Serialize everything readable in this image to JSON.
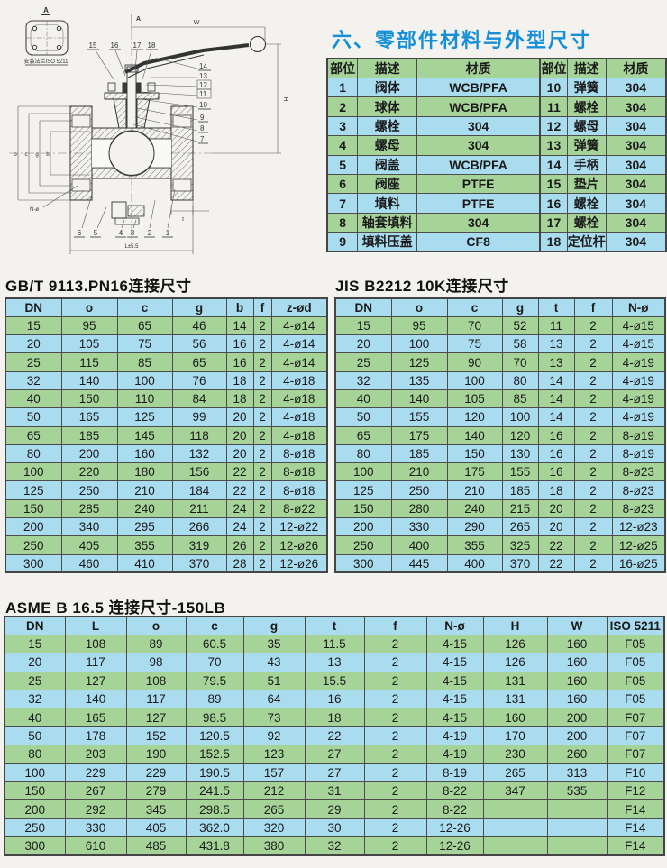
{
  "page": {
    "title": "六、零部件材料与外型尺寸"
  },
  "colors": {
    "title_blue": "#1590d7",
    "row_green": "#a6d498",
    "row_blue": "#aadcf0"
  },
  "drawing": {
    "view_label": "A",
    "axis_label": "A",
    "iso_note": "安装法兰ISO 5211",
    "callouts_top": [
      "15",
      "16",
      "17",
      "18"
    ],
    "callouts_right": [
      "14",
      "13",
      "12",
      "11",
      "10",
      "9",
      "8",
      "7"
    ],
    "callouts_bottom": [
      "6",
      "5",
      "4",
      "3",
      "2",
      "1"
    ],
    "dims": {
      "w": "W",
      "h": "H",
      "o": "o",
      "c": "c",
      "g": "g",
      "b": "b",
      "n_phi": "N-ø",
      "l": "L±5.5",
      "t": "t"
    }
  },
  "parts_table": {
    "headers": [
      "部位",
      "描述",
      "材质",
      "部位",
      "描述",
      "材质"
    ],
    "rows": [
      [
        "1",
        "阀体",
        "WCB/PFA",
        "10",
        "弹簧",
        "304"
      ],
      [
        "2",
        "球体",
        "WCB/PFA",
        "11",
        "螺栓",
        "304"
      ],
      [
        "3",
        "螺栓",
        "304",
        "12",
        "螺母",
        "304"
      ],
      [
        "4",
        "螺母",
        "304",
        "13",
        "弹簧",
        "304"
      ],
      [
        "5",
        "阀盖",
        "WCB/PFA",
        "14",
        "手柄",
        "304"
      ],
      [
        "6",
        "阀座",
        "PTFE",
        "15",
        "垫片",
        "304"
      ],
      [
        "7",
        "填料",
        "PTFE",
        "16",
        "螺栓",
        "304"
      ],
      [
        "8",
        "轴套填料",
        "304",
        "17",
        "螺栓",
        "304"
      ],
      [
        "9",
        "填料压盖",
        "CF8",
        "18",
        "定位杆",
        "304"
      ]
    ],
    "row_shades": [
      "b",
      "g",
      "b",
      "g",
      "b",
      "g",
      "b",
      "g",
      "b"
    ]
  },
  "gbt_section": {
    "title": "GB/T 9113.PN16连接尺寸",
    "table": {
      "headers": [
        "DN",
        "o",
        "c",
        "g",
        "b",
        "f",
        "z-ød"
      ],
      "rows": [
        [
          "15",
          "95",
          "65",
          "46",
          "14",
          "2",
          "4-ø14"
        ],
        [
          "20",
          "105",
          "75",
          "56",
          "16",
          "2",
          "4-ø14"
        ],
        [
          "25",
          "115",
          "85",
          "65",
          "16",
          "2",
          "4-ø14"
        ],
        [
          "32",
          "140",
          "100",
          "76",
          "18",
          "2",
          "4-ø18"
        ],
        [
          "40",
          "150",
          "110",
          "84",
          "18",
          "2",
          "4-ø18"
        ],
        [
          "50",
          "165",
          "125",
          "99",
          "20",
          "2",
          "4-ø18"
        ],
        [
          "65",
          "185",
          "145",
          "118",
          "20",
          "2",
          "4-ø18"
        ],
        [
          "80",
          "200",
          "160",
          "132",
          "20",
          "2",
          "8-ø18"
        ],
        [
          "100",
          "220",
          "180",
          "156",
          "22",
          "2",
          "8-ø18"
        ],
        [
          "125",
          "250",
          "210",
          "184",
          "22",
          "2",
          "8-ø18"
        ],
        [
          "150",
          "285",
          "240",
          "211",
          "24",
          "2",
          "8-ø22"
        ],
        [
          "200",
          "340",
          "295",
          "266",
          "24",
          "2",
          "12-ø22"
        ],
        [
          "250",
          "405",
          "355",
          "319",
          "26",
          "2",
          "12-ø26"
        ],
        [
          "300",
          "460",
          "410",
          "370",
          "28",
          "2",
          "12-ø26"
        ]
      ],
      "row_shades": [
        "g",
        "b",
        "g",
        "b",
        "g",
        "b",
        "g",
        "b",
        "g",
        "b",
        "g",
        "b",
        "g",
        "b"
      ]
    }
  },
  "jis_section": {
    "title": "JIS B2212 10K连接尺寸",
    "table": {
      "headers": [
        "DN",
        "o",
        "c",
        "g",
        "t",
        "f",
        "N-ø"
      ],
      "rows": [
        [
          "15",
          "95",
          "70",
          "52",
          "11",
          "2",
          "4-ø15"
        ],
        [
          "20",
          "100",
          "75",
          "58",
          "13",
          "2",
          "4-ø15"
        ],
        [
          "25",
          "125",
          "90",
          "70",
          "13",
          "2",
          "4-ø19"
        ],
        [
          "32",
          "135",
          "100",
          "80",
          "14",
          "2",
          "4-ø19"
        ],
        [
          "40",
          "140",
          "105",
          "85",
          "14",
          "2",
          "4-ø19"
        ],
        [
          "50",
          "155",
          "120",
          "100",
          "14",
          "2",
          "4-ø19"
        ],
        [
          "65",
          "175",
          "140",
          "120",
          "16",
          "2",
          "8-ø19"
        ],
        [
          "80",
          "185",
          "150",
          "130",
          "16",
          "2",
          "8-ø19"
        ],
        [
          "100",
          "210",
          "175",
          "155",
          "16",
          "2",
          "8-ø23"
        ],
        [
          "125",
          "250",
          "210",
          "185",
          "18",
          "2",
          "8-ø23"
        ],
        [
          "150",
          "280",
          "240",
          "215",
          "20",
          "2",
          "8-ø23"
        ],
        [
          "200",
          "330",
          "290",
          "265",
          "20",
          "2",
          "12-ø23"
        ],
        [
          "250",
          "400",
          "355",
          "325",
          "22",
          "2",
          "12-ø25"
        ],
        [
          "300",
          "445",
          "400",
          "370",
          "22",
          "2",
          "16-ø25"
        ]
      ],
      "row_shades": [
        "g",
        "b",
        "g",
        "b",
        "g",
        "b",
        "g",
        "b",
        "g",
        "b",
        "g",
        "b",
        "g",
        "b"
      ]
    }
  },
  "asme_section": {
    "title": "ASME B 16.5 连接尺寸-150LB",
    "table": {
      "headers": [
        "DN",
        "L",
        "o",
        "c",
        "g",
        "t",
        "f",
        "N-ø",
        "H",
        "W",
        "ISO 5211"
      ],
      "rows": [
        [
          "15",
          "108",
          "89",
          "60.5",
          "35",
          "11.5",
          "2",
          "4-15",
          "126",
          "160",
          "F05"
        ],
        [
          "20",
          "117",
          "98",
          "70",
          "43",
          "13",
          "2",
          "4-15",
          "126",
          "160",
          "F05"
        ],
        [
          "25",
          "127",
          "108",
          "79.5",
          "51",
          "15.5",
          "2",
          "4-15",
          "131",
          "160",
          "F05"
        ],
        [
          "32",
          "140",
          "117",
          "89",
          "64",
          "16",
          "2",
          "4-15",
          "131",
          "160",
          "F05"
        ],
        [
          "40",
          "165",
          "127",
          "98.5",
          "73",
          "18",
          "2",
          "4-15",
          "160",
          "200",
          "F07"
        ],
        [
          "50",
          "178",
          "152",
          "120.5",
          "92",
          "22",
          "2",
          "4-19",
          "170",
          "200",
          "F07"
        ],
        [
          "80",
          "203",
          "190",
          "152.5",
          "123",
          "27",
          "2",
          "4-19",
          "230",
          "260",
          "F07"
        ],
        [
          "100",
          "229",
          "229",
          "190.5",
          "157",
          "27",
          "2",
          "8-19",
          "265",
          "313",
          "F10"
        ],
        [
          "150",
          "267",
          "279",
          "241.5",
          "212",
          "31",
          "2",
          "8-22",
          "347",
          "535",
          "F12"
        ],
        [
          "200",
          "292",
          "345",
          "298.5",
          "265",
          "29",
          "2",
          "8-22",
          "",
          "",
          "F14"
        ],
        [
          "250",
          "330",
          "405",
          "362.0",
          "320",
          "30",
          "2",
          "12-26",
          "",
          "",
          "F14"
        ],
        [
          "300",
          "610",
          "485",
          "431.8",
          "380",
          "32",
          "2",
          "12-26",
          "",
          "",
          "F14"
        ]
      ],
      "row_shades": [
        "g",
        "b",
        "g",
        "b",
        "g",
        "b",
        "g",
        "b",
        "g",
        "g",
        "b",
        "g"
      ]
    }
  }
}
